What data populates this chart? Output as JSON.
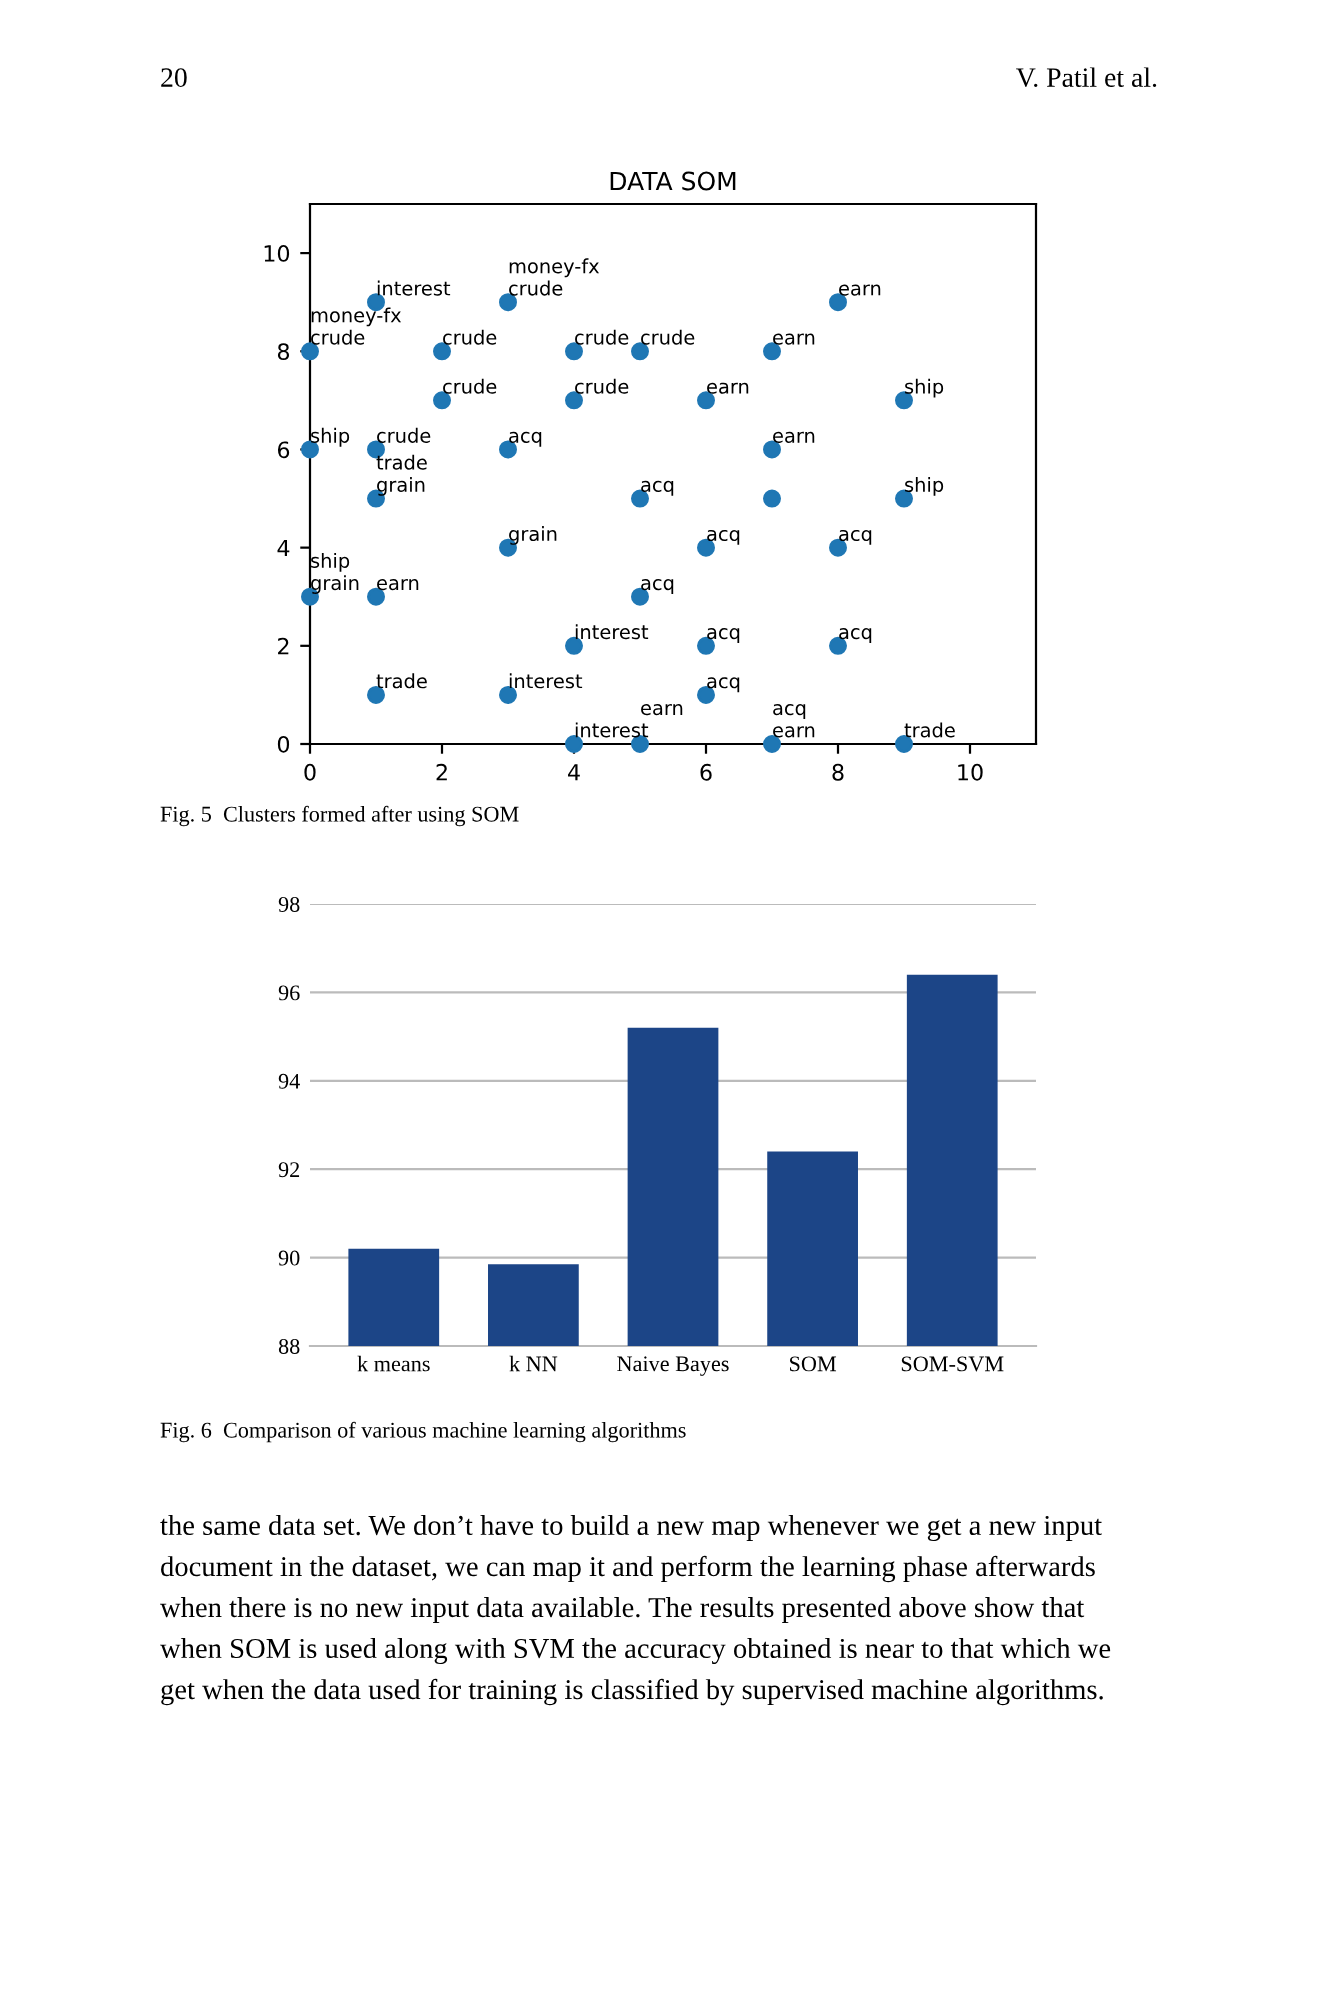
{
  "chart_data": [
    {
      "type": "scatter",
      "title": "DATA SOM",
      "x": [
        1,
        3,
        8,
        0,
        2,
        4,
        5,
        7,
        2,
        4,
        6,
        9,
        0,
        1,
        3,
        7,
        1,
        5,
        7,
        9,
        3,
        6,
        8,
        0,
        1,
        5,
        4,
        6,
        8,
        1,
        3,
        6,
        4,
        5,
        7,
        9
      ],
      "series": [
        {
          "color": "#1f77b4",
          "values": [
            9,
            9,
            9,
            8,
            8,
            8,
            8,
            8,
            7,
            7,
            7,
            7,
            6,
            6,
            6,
            6,
            5,
            5,
            5,
            5,
            4,
            4,
            4,
            3,
            3,
            3,
            2,
            2,
            2,
            1,
            1,
            1,
            0,
            0,
            0,
            0
          ]
        }
      ],
      "marker": "circle",
      "xlim": [
        0,
        11
      ],
      "ylim": [
        0,
        11
      ],
      "xticks": [
        0,
        2,
        4,
        6,
        8,
        10
      ],
      "yticks": [
        0,
        2,
        4,
        6,
        8,
        10
      ],
      "grid": false,
      "annotations": [
        "20",
        "V. Patil et al.",
        "Fig. 5  Clusters formed after using SOM",
        {
          "text": "interest",
          "x": 1,
          "y": 9
        },
        {
          "text": "crude",
          "x": 3,
          "y": 9
        },
        {
          "text": "money-fx",
          "x": 3,
          "y": 9
        },
        {
          "text": "earn",
          "x": 8,
          "y": 9
        },
        {
          "text": "crude",
          "x": 0,
          "y": 8
        },
        {
          "text": "money-fx",
          "x": 0,
          "y": 8
        },
        {
          "text": "crude",
          "x": 2,
          "y": 8
        },
        {
          "text": "crude",
          "x": 4,
          "y": 8
        },
        {
          "text": "crude",
          "x": 5,
          "y": 8
        },
        {
          "text": "earn",
          "x": 7,
          "y": 8
        },
        {
          "text": "crude",
          "x": 2,
          "y": 7
        },
        {
          "text": "crude",
          "x": 4,
          "y": 7
        },
        {
          "text": "earn",
          "x": 6,
          "y": 7
        },
        {
          "text": "ship",
          "x": 9,
          "y": 7
        },
        {
          "text": "ship",
          "x": 0,
          "y": 6
        },
        {
          "text": "crude",
          "x": 1,
          "y": 6
        },
        {
          "text": "acq",
          "x": 3,
          "y": 6
        },
        {
          "text": "earn",
          "x": 7,
          "y": 6
        },
        {
          "text": "grain",
          "x": 1,
          "y": 5
        },
        {
          "text": "trade",
          "x": 1,
          "y": 5
        },
        {
          "text": "acq",
          "x": 5,
          "y": 5
        },
        {
          "text": "ship",
          "x": 9,
          "y": 5
        },
        {
          "text": "grain",
          "x": 3,
          "y": 4
        },
        {
          "text": "acq",
          "x": 6,
          "y": 4
        },
        {
          "text": "acq",
          "x": 8,
          "y": 4
        },
        {
          "text": "grain",
          "x": 0,
          "y": 3
        },
        {
          "text": "ship",
          "x": 0,
          "y": 3
        },
        {
          "text": "earn",
          "x": 1,
          "y": 3
        },
        {
          "text": "acq",
          "x": 5,
          "y": 3
        },
        {
          "text": "interest",
          "x": 4,
          "y": 2
        },
        {
          "text": "acq",
          "x": 6,
          "y": 2
        },
        {
          "text": "acq",
          "x": 8,
          "y": 2
        },
        {
          "text": "trade",
          "x": 1,
          "y": 1
        },
        {
          "text": "interest",
          "x": 3,
          "y": 1
        },
        {
          "text": "acq",
          "x": 6,
          "y": 1
        },
        {
          "text": "interest",
          "x": 4,
          "y": 0
        },
        {
          "text": "earn",
          "x": 5,
          "y": 0
        },
        {
          "text": "earn",
          "x": 7,
          "y": 0
        },
        {
          "text": "acq",
          "x": 7,
          "y": 0
        },
        {
          "text": "trade",
          "x": 9,
          "y": 0
        }
      ]
    },
    {
      "type": "bar",
      "categories": [
        "k means",
        "k NN",
        "Naive Bayes",
        "SOM",
        "SOM-SVM"
      ],
      "values": [
        90.2,
        89.85,
        95.2,
        92.4,
        96.4
      ],
      "color": "#1c4587",
      "ylim": [
        88,
        98
      ],
      "yticks": [
        88,
        90,
        92,
        94,
        96,
        98
      ],
      "grid": "y",
      "annotations": [
        "Fig. 6  Comparison of various machine learning algorithms",
        "the same data set. We don’t have to build a new map whenever we get a new input",
        "document in the dataset, we can map it and perform the learning phase afterwards",
        "when there is no new input data available. The results presented above show that",
        "when SOM is used along with SVM the accuracy obtained is near to that which we",
        "get when the data used for training is classified by supervised machine algorithms."
      ]
    }
  ]
}
